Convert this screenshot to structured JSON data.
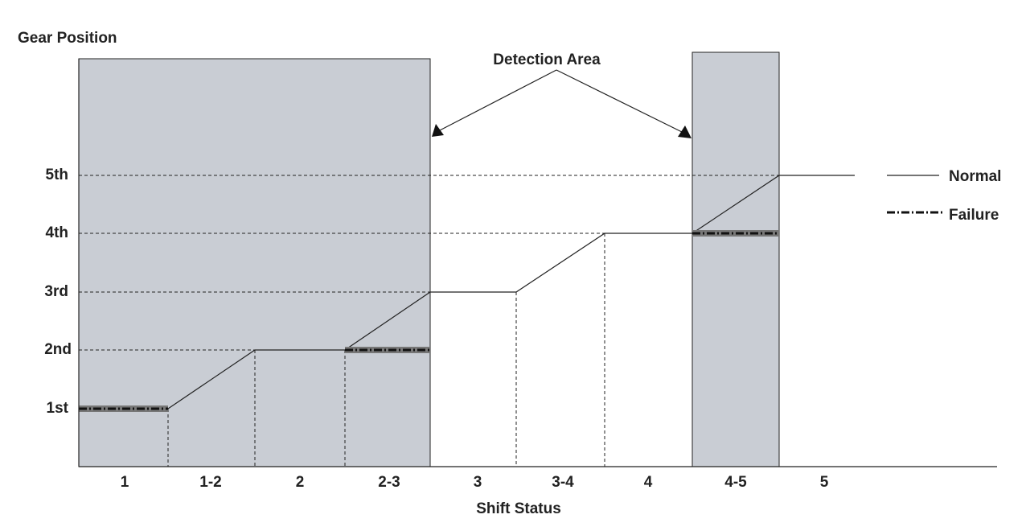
{
  "y_axis": {
    "title": "Gear Position",
    "labels": [
      "1st",
      "2nd",
      "3rd",
      "4th",
      "5th"
    ]
  },
  "x_axis": {
    "title": "Shift Status",
    "labels": [
      "1",
      "1-2",
      "2",
      "2-3",
      "3",
      "3-4",
      "4",
      "4-5",
      "5"
    ]
  },
  "annotation": "Detection Area",
  "legend": [
    "Normal",
    "Failure"
  ]
}
